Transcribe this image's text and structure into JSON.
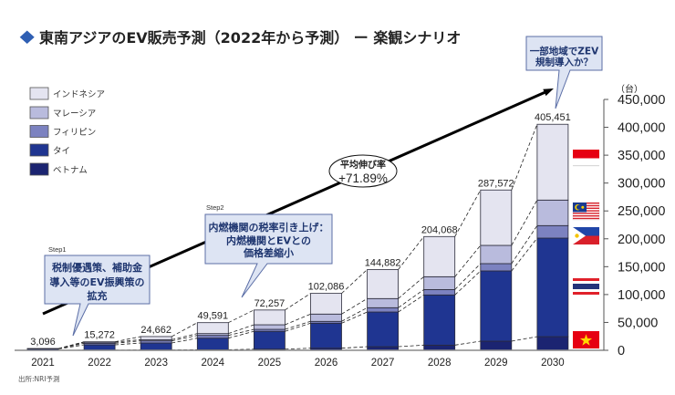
{
  "chart_data": {
    "type": "bar",
    "stacked": true,
    "title": "東南アジアのEV販売予測（2022年から予測） ー 楽観シナリオ",
    "xlabel": "",
    "ylabel": "（台）",
    "categories": [
      "2021",
      "2022",
      "2023",
      "2024",
      "2025",
      "2026",
      "2027",
      "2028",
      "2029",
      "2030"
    ],
    "totals": [
      3096,
      15272,
      24662,
      49591,
      72257,
      102086,
      144882,
      204068,
      287572,
      405451
    ],
    "total_labels": [
      "3,096",
      "15,272",
      "24,662",
      "49,591",
      "72,257",
      "102,086",
      "144,882",
      "204,068",
      "287,572",
      "405,451"
    ],
    "series": [
      {
        "name": "インドネシア",
        "color": "#e4e4f0",
        "values": [
          96,
          772,
          5562,
          19591,
          26457,
          37086,
          52082,
          72068,
          99372,
          135951
        ]
      },
      {
        "name": "マレーシア",
        "color": "#b9bbdd",
        "values": [
          300,
          1900,
          2200,
          3300,
          8200,
          13100,
          16400,
          23000,
          32700,
          45800
        ]
      },
      {
        "name": "フィリピン",
        "color": "#7c82c0",
        "values": [
          300,
          2800,
          3800,
          4900,
          3600,
          3300,
          7700,
          9700,
          13100,
          22400
        ]
      },
      {
        "name": "タイ",
        "color": "#1f3591",
        "values": [
          2300,
          9500,
          12500,
          20800,
          32000,
          44800,
          62200,
          90000,
          126000,
          176800
        ]
      },
      {
        "name": "ベトナム",
        "color": "#1b2471",
        "values": [
          100,
          300,
          600,
          1000,
          2000,
          3800,
          6500,
          9300,
          16400,
          24500
        ]
      }
    ],
    "ylim": [
      0,
      450000
    ],
    "yticks": [
      0,
      50000,
      100000,
      150000,
      200000,
      250000,
      300000,
      350000,
      400000,
      450000
    ],
    "ytick_labels": [
      "0",
      "50,000",
      "100,000",
      "150,000",
      "200,000",
      "250,000",
      "300,000",
      "350,000",
      "400,000",
      "450,000"
    ],
    "legend_position": "top-left",
    "grid": false,
    "trend": {
      "label": "平均伸び率",
      "value": "+71.89%"
    },
    "flag_icons": [
      "indonesia-flag-icon",
      "malaysia-flag-icon",
      "philippines-flag-icon",
      "thailand-flag-icon",
      "vietnam-flag-icon"
    ]
  },
  "annotations": {
    "step1": {
      "tag": "Step1",
      "lines": [
        "税制優遇策、補助金",
        "導入等のEV振興策の",
        "拡充"
      ]
    },
    "step2": {
      "tag": "Step2",
      "lines": [
        "内燃機関の税率引き上げ：",
        "内燃機関とEVとの",
        "価格差縮小"
      ]
    },
    "zev": {
      "lines": [
        "一部地域でZEV",
        "規制導入か？"
      ]
    }
  },
  "source": "出所:NRI予測",
  "colors": {
    "title_marker": "#2f5fb3",
    "callout_fill": "#dde4f3",
    "callout_border": "#5b6ea6",
    "callout_text": "#1f3670",
    "trend_line": "#000000"
  }
}
